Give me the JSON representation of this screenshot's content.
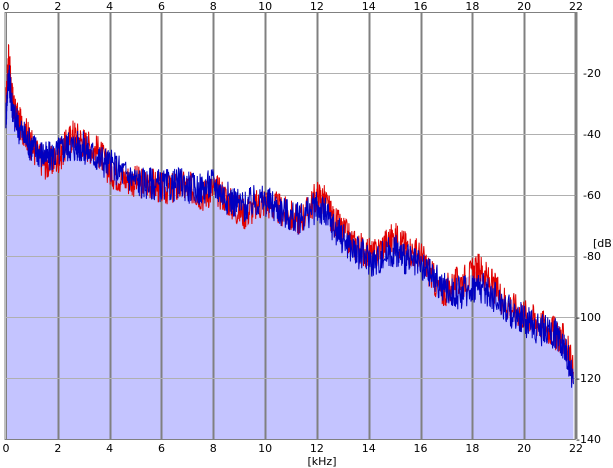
{
  "chart_data": {
    "type": "line",
    "xlabel": "[kHz]",
    "ylabel": "[dB]",
    "xlim": [
      0,
      22
    ],
    "ylim": [
      -140,
      0
    ],
    "x_ticks": [
      0,
      2,
      4,
      6,
      8,
      10,
      12,
      14,
      16,
      18,
      20,
      22
    ],
    "y_ticks": [
      -20,
      -40,
      -60,
      -80,
      -100,
      -120,
      -140
    ],
    "x_tick_labels_top": [
      "0",
      "2",
      "4",
      "6",
      "8",
      "10",
      "12",
      "14",
      "16",
      "18",
      "20",
      "22"
    ],
    "x_tick_labels_bottom": [
      "0",
      "2",
      "4",
      "6",
      "8",
      "10",
      "12",
      "14",
      "16",
      "18",
      "20",
      "22"
    ],
    "y_tick_labels": [
      "-20",
      "-40",
      "-60",
      "-80",
      "-100",
      "-120",
      "-140"
    ],
    "grid": true,
    "fill_color": "#c4c4ff",
    "grid_color": "#808080",
    "series": [
      {
        "color": "#e00000",
        "x": [
          0,
          0.1,
          0.2,
          0.3,
          0.5,
          0.8,
          1.0,
          1.3,
          1.6,
          2.0,
          2.3,
          2.6,
          2.9,
          3.2,
          3.6,
          4.0,
          4.4,
          4.8,
          5.2,
          5.6,
          6.0,
          6.4,
          6.8,
          7.2,
          7.6,
          8.0,
          8.4,
          8.8,
          9.2,
          9.6,
          10.0,
          10.4,
          10.8,
          11.2,
          11.6,
          12.0,
          12.3,
          12.6,
          13.0,
          13.4,
          13.8,
          14.2,
          14.6,
          15.0,
          15.3,
          15.6,
          16.0,
          16.4,
          16.8,
          17.2,
          17.6,
          18.0,
          18.3,
          18.6,
          19.0,
          19.4,
          19.8,
          20.2,
          20.6,
          21.0,
          21.3,
          21.6,
          21.9
        ],
        "y": [
          -30,
          -14,
          -25,
          -32,
          -36,
          -40,
          -44,
          -48,
          -50,
          -48,
          -44,
          -40,
          -42,
          -44,
          -46,
          -52,
          -54,
          -55,
          -56,
          -56,
          -58,
          -58,
          -57,
          -58,
          -60,
          -58,
          -60,
          -64,
          -66,
          -64,
          -62,
          -64,
          -66,
          -68,
          -66,
          -60,
          -62,
          -68,
          -72,
          -76,
          -78,
          -80,
          -76,
          -74,
          -76,
          -78,
          -80,
          -86,
          -92,
          -90,
          -88,
          -86,
          -84,
          -88,
          -92,
          -96,
          -98,
          -100,
          -102,
          -104,
          -106,
          -108,
          -118
        ]
      },
      {
        "color": "#0000c0",
        "x": [
          0,
          0.1,
          0.2,
          0.3,
          0.5,
          0.8,
          1.0,
          1.3,
          1.6,
          2.0,
          2.3,
          2.6,
          2.9,
          3.2,
          3.6,
          4.0,
          4.4,
          4.8,
          5.2,
          5.6,
          6.0,
          6.4,
          6.8,
          7.2,
          7.6,
          8.0,
          8.4,
          8.8,
          9.2,
          9.6,
          10.0,
          10.4,
          10.8,
          11.2,
          11.6,
          12.0,
          12.3,
          12.6,
          13.0,
          13.4,
          13.8,
          14.2,
          14.6,
          15.0,
          15.3,
          15.6,
          16.0,
          16.4,
          16.8,
          17.2,
          17.6,
          18.0,
          18.3,
          18.6,
          19.0,
          19.4,
          19.8,
          20.2,
          20.6,
          21.0,
          21.3,
          21.6,
          21.9
        ],
        "y": [
          -34,
          -20,
          -28,
          -34,
          -38,
          -42,
          -44,
          -46,
          -48,
          -46,
          -44,
          -44,
          -44,
          -46,
          -48,
          -50,
          -52,
          -54,
          -56,
          -56,
          -57,
          -57,
          -56,
          -58,
          -58,
          -56,
          -60,
          -62,
          -64,
          -62,
          -62,
          -64,
          -66,
          -68,
          -66,
          -64,
          -66,
          -70,
          -74,
          -78,
          -80,
          -82,
          -80,
          -78,
          -80,
          -82,
          -84,
          -86,
          -90,
          -92,
          -92,
          -90,
          -90,
          -92,
          -94,
          -98,
          -100,
          -102,
          -104,
          -105,
          -106,
          -110,
          -122
        ]
      }
    ]
  }
}
